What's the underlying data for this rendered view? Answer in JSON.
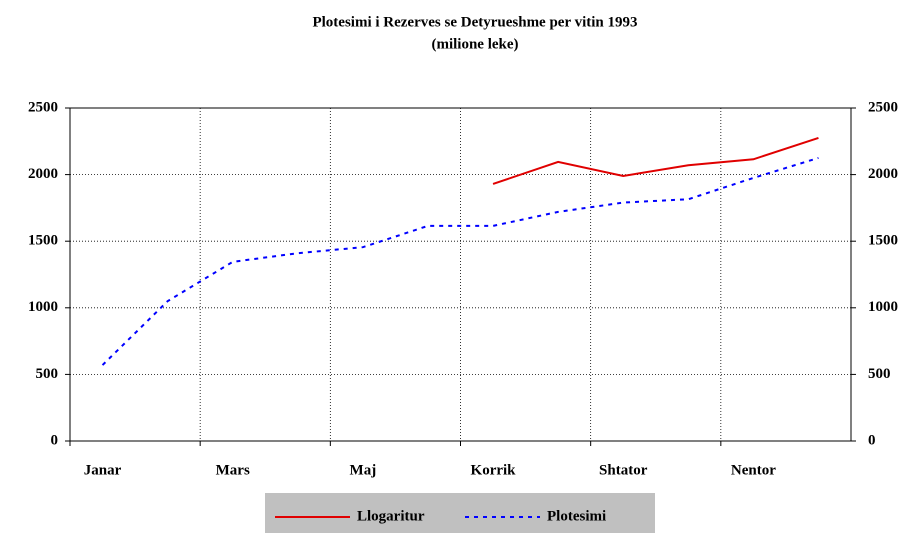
{
  "chart_data": {
    "type": "line",
    "title": "Plotesimi i Rezerves se Detyrueshme per vitin 1993",
    "subtitle": "(milione leke)",
    "categories": [
      "Janar",
      null,
      "Mars",
      null,
      "Maj",
      null,
      "Korrik",
      null,
      "Shtator",
      null,
      "Nentor",
      null
    ],
    "series": [
      {
        "name": "Llogaritur",
        "color": "#e00000",
        "style": "solid",
        "values": [
          null,
          null,
          null,
          null,
          null,
          null,
          1930,
          2095,
          1990,
          2070,
          2115,
          2275
        ]
      },
      {
        "name": "Plotesimi",
        "color": "#0000ff",
        "style": "dashed",
        "values": [
          570,
          1050,
          1345,
          1410,
          1455,
          1615,
          1615,
          1720,
          1790,
          1815,
          1975,
          2125
        ]
      }
    ],
    "ylim": [
      0,
      2500
    ],
    "yticks": [
      0,
      500,
      1000,
      1500,
      2000,
      2500
    ],
    "y2lim": [
      0,
      2500
    ],
    "y2ticks": [
      0,
      500,
      1000,
      1500,
      2000,
      2500
    ],
    "grid": true,
    "legend": "bottom"
  }
}
